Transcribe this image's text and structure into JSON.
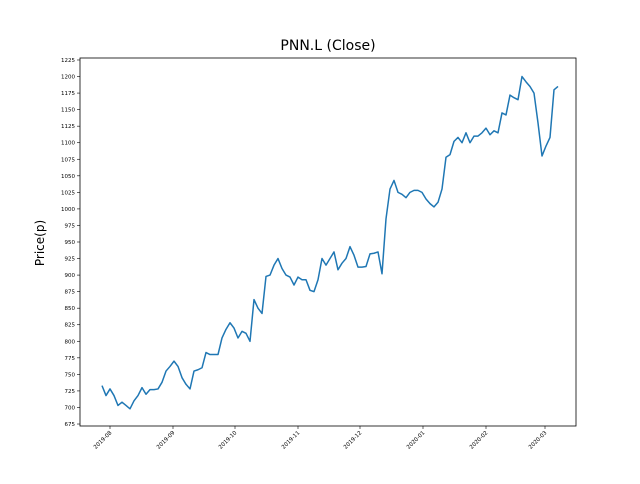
{
  "chart_data": {
    "type": "line",
    "title": "PNN.L (Close)",
    "y_label": "Price(p)",
    "color": "#1f77b4",
    "values": [
      733,
      718,
      728,
      718,
      703,
      708,
      703,
      698,
      710,
      718,
      730,
      720,
      727,
      727,
      728,
      738,
      755,
      762,
      770,
      762,
      745,
      735,
      728,
      755,
      757,
      760,
      783,
      780,
      780,
      780,
      805,
      818,
      828,
      820,
      805,
      815,
      812,
      800,
      863,
      850,
      842,
      898,
      900,
      915,
      925,
      910,
      900,
      897,
      885,
      897,
      893,
      893,
      877,
      875,
      893,
      925,
      915,
      925,
      935,
      908,
      918,
      925,
      943,
      930,
      912,
      912,
      913,
      932,
      933,
      935,
      902,
      985,
      1030,
      1043,
      1025,
      1022,
      1017,
      1025,
      1028,
      1028,
      1025,
      1015,
      1008,
      1003,
      1010,
      1030,
      1078,
      1082,
      1102,
      1108,
      1100,
      1115,
      1100,
      1110,
      1110,
      1115,
      1122,
      1112,
      1118,
      1115,
      1145,
      1142,
      1172,
      1168,
      1165,
      1200,
      1192,
      1185,
      1175,
      1130,
      1080,
      1095,
      1108,
      1180,
      1185
    ],
    "xlim": [
      -5.5,
      118.5
    ],
    "xticks": [
      {
        "value": 2,
        "label": "2019-08"
      },
      {
        "value": 17.75,
        "label": "2019-09"
      },
      {
        "value": 33.25,
        "label": "2019-10"
      },
      {
        "value": 49,
        "label": "2019-11"
      },
      {
        "value": 64.5,
        "label": "2019-12"
      },
      {
        "value": 80.25,
        "label": "2020-01"
      },
      {
        "value": 96,
        "label": "2020-02"
      },
      {
        "value": 110.75,
        "label": "2020-03"
      }
    ],
    "ylim": [
      672,
      1228
    ],
    "yticks": [
      675,
      700,
      725,
      750,
      775,
      800,
      825,
      850,
      875,
      900,
      925,
      950,
      975,
      1000,
      1025,
      1050,
      1075,
      1100,
      1125,
      1150,
      1175,
      1200,
      1225
    ]
  }
}
